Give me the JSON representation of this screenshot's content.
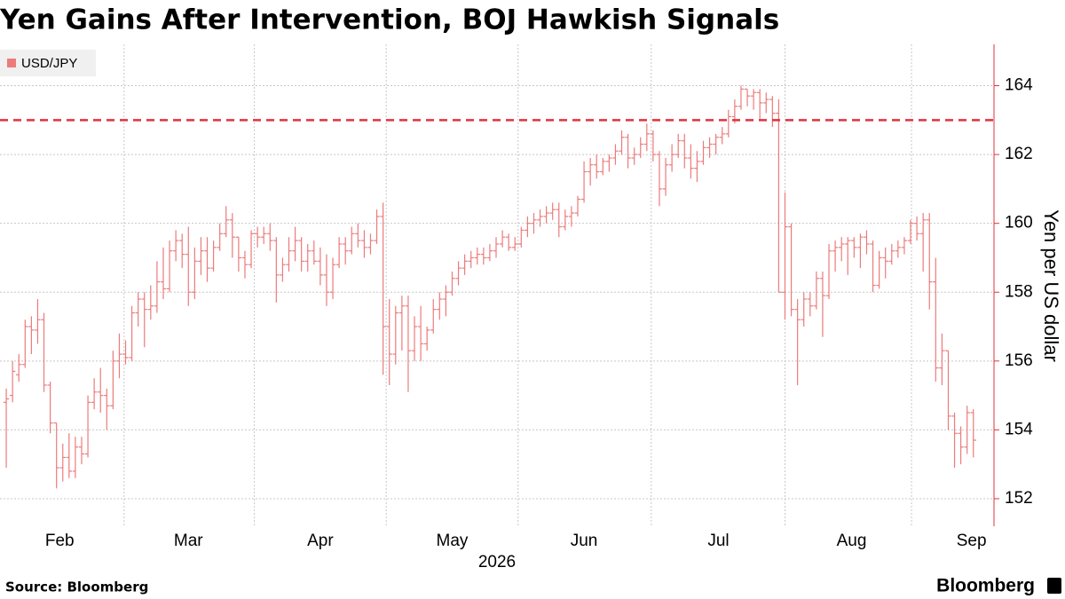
{
  "chart_data": {
    "type": "ohlc",
    "title": "Yen Gains After Intervention, BOJ Hawkish Signals",
    "xlabel": "2026",
    "ylabel": "Yen per US dollar",
    "source": "Source: Bloomberg",
    "brand": "Bloomberg",
    "legend": "top-left",
    "grid": true,
    "reference_line": {
      "value": 163,
      "color": "#e0323f"
    },
    "xlim": [
      -1,
      157
    ],
    "xticks": [
      {
        "value": 8.5,
        "label": "Feb"
      },
      {
        "value": 29,
        "label": "Mar"
      },
      {
        "value": 50,
        "label": "Apr"
      },
      {
        "value": 71,
        "label": "May"
      },
      {
        "value": 92,
        "label": "Jun"
      },
      {
        "value": 113.4,
        "label": "Jul"
      },
      {
        "value": 134.6,
        "label": "Aug"
      },
      {
        "value": 153.7,
        "label": "Sep"
      }
    ],
    "ylim": [
      151.2,
      165.2
    ],
    "yticks": [
      152,
      154,
      156,
      158,
      160,
      162,
      164
    ],
    "series": [
      {
        "name": "USD/JPY",
        "color": "#ec7b7c",
        "ohlc": [
          [
            154.8,
            155.2,
            152.9,
            154.9
          ],
          [
            155.0,
            156.0,
            154.8,
            155.7
          ],
          [
            155.6,
            156.2,
            155.4,
            155.9
          ],
          [
            155.9,
            157.2,
            155.8,
            157.0
          ],
          [
            157.0,
            157.3,
            156.2,
            156.9
          ],
          [
            156.9,
            157.8,
            156.5,
            157.2
          ],
          [
            157.2,
            157.4,
            155.1,
            155.3
          ],
          [
            155.3,
            155.4,
            153.9,
            154.2
          ],
          [
            154.2,
            154.2,
            152.3,
            152.9
          ],
          [
            152.9,
            153.6,
            152.5,
            153.2
          ],
          [
            153.2,
            153.9,
            152.6,
            152.8
          ],
          [
            152.8,
            153.8,
            152.6,
            153.5
          ],
          [
            153.5,
            153.8,
            153.0,
            153.3
          ],
          [
            153.3,
            155.0,
            153.2,
            154.8
          ],
          [
            154.8,
            155.5,
            154.6,
            155.1
          ],
          [
            155.1,
            155.8,
            154.5,
            155.0
          ],
          [
            155.0,
            155.2,
            154.0,
            154.7
          ],
          [
            154.7,
            156.3,
            154.6,
            156.0
          ],
          [
            156.0,
            156.8,
            155.5,
            156.2
          ],
          [
            156.2,
            156.6,
            155.9,
            156.1
          ],
          [
            156.1,
            157.6,
            156.0,
            157.4
          ],
          [
            157.4,
            158.0,
            157.0,
            157.8
          ],
          [
            157.8,
            158.0,
            156.4,
            157.5
          ],
          [
            157.5,
            158.2,
            157.2,
            157.6
          ],
          [
            157.6,
            158.9,
            157.4,
            158.3
          ],
          [
            158.3,
            159.3,
            157.8,
            158.1
          ],
          [
            158.1,
            159.5,
            158.0,
            159.2
          ],
          [
            159.2,
            159.8,
            158.9,
            159.5
          ],
          [
            159.5,
            159.7,
            158.7,
            159.1
          ],
          [
            159.1,
            159.9,
            157.6,
            158.0
          ],
          [
            158.0,
            159.3,
            157.8,
            158.9
          ],
          [
            158.9,
            159.6,
            158.5,
            159.2
          ],
          [
            159.2,
            159.6,
            158.3,
            158.7
          ],
          [
            158.7,
            159.5,
            158.6,
            159.3
          ],
          [
            159.3,
            160.0,
            159.2,
            159.7
          ],
          [
            159.7,
            160.5,
            159.6,
            160.1
          ],
          [
            160.1,
            160.3,
            159.0,
            159.6
          ],
          [
            159.6,
            159.6,
            158.6,
            159.0
          ],
          [
            159.0,
            159.2,
            158.4,
            158.8
          ],
          [
            158.8,
            159.8,
            158.7,
            159.7
          ],
          [
            159.7,
            159.9,
            159.3,
            159.6
          ],
          [
            159.6,
            159.9,
            159.4,
            159.7
          ],
          [
            159.7,
            160.0,
            159.2,
            159.5
          ],
          [
            159.5,
            159.6,
            157.7,
            158.5
          ],
          [
            158.5,
            159.0,
            158.3,
            158.8
          ],
          [
            158.8,
            159.6,
            158.6,
            159.2
          ],
          [
            159.2,
            159.9,
            158.9,
            159.5
          ],
          [
            159.5,
            159.6,
            158.6,
            158.9
          ],
          [
            158.9,
            159.4,
            158.6,
            159.2
          ],
          [
            159.2,
            159.5,
            158.8,
            158.9
          ],
          [
            158.9,
            159.3,
            158.2,
            158.5
          ],
          [
            158.5,
            159.1,
            157.6,
            158.0
          ],
          [
            158.0,
            159.0,
            157.8,
            158.8
          ],
          [
            158.8,
            159.6,
            158.7,
            159.4
          ],
          [
            159.4,
            159.6,
            158.8,
            159.2
          ],
          [
            159.2,
            159.9,
            159.1,
            159.7
          ],
          [
            159.7,
            160.0,
            159.3,
            159.5
          ],
          [
            159.5,
            159.8,
            159.0,
            159.3
          ],
          [
            159.3,
            159.7,
            159.1,
            159.5
          ],
          [
            159.5,
            160.4,
            159.4,
            160.2
          ],
          [
            160.2,
            160.6,
            155.6,
            157.0
          ],
          [
            157.0,
            157.8,
            155.3,
            156.2
          ],
          [
            156.2,
            157.6,
            155.9,
            157.4
          ],
          [
            157.4,
            157.9,
            156.3,
            157.6
          ],
          [
            157.6,
            157.9,
            155.1,
            156.3
          ],
          [
            156.3,
            157.3,
            156.0,
            157.0
          ],
          [
            157.0,
            157.6,
            156.0,
            156.5
          ],
          [
            156.5,
            157.0,
            156.3,
            156.9
          ],
          [
            156.9,
            157.8,
            156.8,
            157.5
          ],
          [
            157.5,
            158.0,
            157.2,
            157.8
          ],
          [
            157.8,
            158.2,
            157.3,
            158.0
          ],
          [
            158.0,
            158.6,
            157.9,
            158.4
          ],
          [
            158.4,
            158.9,
            158.2,
            158.7
          ],
          [
            158.7,
            159.1,
            158.5,
            158.9
          ],
          [
            158.9,
            159.2,
            158.7,
            159.0
          ],
          [
            159.0,
            159.3,
            158.8,
            159.1
          ],
          [
            159.1,
            159.3,
            158.8,
            159.0
          ],
          [
            159.0,
            159.4,
            158.9,
            159.2
          ],
          [
            159.2,
            159.6,
            159.0,
            159.4
          ],
          [
            159.4,
            159.8,
            159.3,
            159.6
          ],
          [
            159.6,
            159.7,
            159.2,
            159.3
          ],
          [
            159.3,
            159.6,
            159.2,
            159.4
          ],
          [
            159.4,
            159.9,
            159.3,
            159.8
          ],
          [
            159.8,
            160.2,
            159.6,
            160.0
          ],
          [
            160.0,
            160.3,
            159.7,
            160.1
          ],
          [
            160.1,
            160.4,
            159.9,
            160.2
          ],
          [
            160.2,
            160.5,
            160.0,
            160.3
          ],
          [
            160.3,
            160.6,
            160.1,
            160.4
          ],
          [
            160.4,
            160.6,
            159.6,
            159.9
          ],
          [
            159.9,
            160.4,
            159.8,
            160.2
          ],
          [
            160.2,
            160.5,
            159.9,
            160.3
          ],
          [
            160.3,
            160.8,
            160.2,
            160.7
          ],
          [
            160.7,
            161.8,
            160.6,
            161.5
          ],
          [
            161.5,
            161.9,
            161.1,
            161.7
          ],
          [
            161.7,
            162.0,
            161.3,
            161.5
          ],
          [
            161.5,
            161.9,
            161.4,
            161.8
          ],
          [
            161.8,
            162.0,
            161.5,
            161.9
          ],
          [
            161.9,
            162.3,
            161.7,
            162.1
          ],
          [
            162.1,
            162.7,
            162.0,
            162.5
          ],
          [
            162.5,
            162.6,
            161.6,
            161.9
          ],
          [
            161.9,
            162.2,
            161.7,
            162.0
          ],
          [
            162.0,
            162.5,
            161.9,
            162.3
          ],
          [
            162.3,
            162.9,
            162.1,
            162.6
          ],
          [
            162.6,
            162.7,
            161.8,
            162.0
          ],
          [
            162.0,
            162.1,
            160.5,
            161.0
          ],
          [
            161.0,
            161.9,
            160.8,
            161.7
          ],
          [
            161.7,
            162.3,
            161.5,
            162.0
          ],
          [
            162.0,
            162.6,
            161.9,
            162.4
          ],
          [
            162.4,
            162.6,
            161.6,
            161.9
          ],
          [
            161.9,
            162.3,
            161.3,
            161.6
          ],
          [
            161.6,
            162.1,
            161.2,
            161.8
          ],
          [
            161.8,
            162.4,
            161.7,
            162.2
          ],
          [
            162.2,
            162.5,
            161.9,
            162.3
          ],
          [
            162.3,
            162.6,
            162.0,
            162.5
          ],
          [
            162.5,
            162.8,
            162.3,
            162.6
          ],
          [
            162.6,
            163.3,
            162.5,
            163.1
          ],
          [
            163.1,
            163.6,
            162.9,
            163.4
          ],
          [
            163.4,
            164.0,
            163.3,
            163.9
          ],
          [
            163.9,
            163.9,
            163.4,
            163.7
          ],
          [
            163.7,
            163.9,
            163.3,
            163.8
          ],
          [
            163.8,
            163.9,
            163.0,
            163.5
          ],
          [
            163.5,
            163.8,
            163.2,
            163.6
          ],
          [
            163.6,
            163.7,
            162.8,
            163.2
          ],
          [
            163.2,
            163.6,
            158.0,
            158.0
          ],
          [
            158.0,
            160.9,
            157.2,
            159.9
          ],
          [
            159.9,
            160.0,
            157.3,
            157.5
          ],
          [
            157.5,
            157.8,
            155.3,
            157.2
          ],
          [
            157.2,
            158.0,
            157.0,
            157.8
          ],
          [
            157.8,
            158.0,
            157.3,
            157.6
          ],
          [
            157.6,
            158.6,
            157.5,
            158.4
          ],
          [
            158.4,
            158.6,
            156.7,
            157.9
          ],
          [
            157.9,
            159.4,
            157.8,
            159.2
          ],
          [
            159.2,
            159.5,
            158.6,
            159.3
          ],
          [
            159.3,
            159.6,
            158.9,
            159.4
          ],
          [
            159.4,
            159.6,
            158.5,
            159.5
          ],
          [
            159.5,
            159.6,
            159.0,
            159.3
          ],
          [
            159.3,
            159.7,
            158.7,
            159.6
          ],
          [
            159.6,
            159.8,
            159.1,
            159.4
          ],
          [
            159.4,
            159.5,
            158.0,
            158.2
          ],
          [
            158.2,
            159.2,
            158.1,
            159.0
          ],
          [
            159.0,
            159.3,
            158.4,
            158.9
          ],
          [
            158.9,
            159.4,
            158.8,
            159.2
          ],
          [
            159.2,
            159.5,
            159.0,
            159.3
          ],
          [
            159.3,
            159.6,
            159.1,
            159.5
          ],
          [
            159.5,
            160.1,
            159.4,
            160.0
          ],
          [
            160.0,
            160.2,
            159.5,
            159.7
          ],
          [
            159.7,
            160.3,
            158.6,
            160.1
          ],
          [
            160.1,
            160.3,
            157.5,
            158.3
          ],
          [
            158.3,
            159.0,
            155.4,
            155.8
          ],
          [
            155.8,
            156.8,
            155.3,
            156.3
          ],
          [
            156.3,
            156.3,
            154.0,
            154.4
          ],
          [
            154.4,
            154.5,
            152.9,
            153.9
          ],
          [
            153.9,
            154.1,
            153.0,
            153.5
          ],
          [
            153.5,
            154.7,
            153.3,
            154.5
          ],
          [
            154.5,
            154.6,
            153.2,
            153.7
          ]
        ]
      }
    ]
  }
}
